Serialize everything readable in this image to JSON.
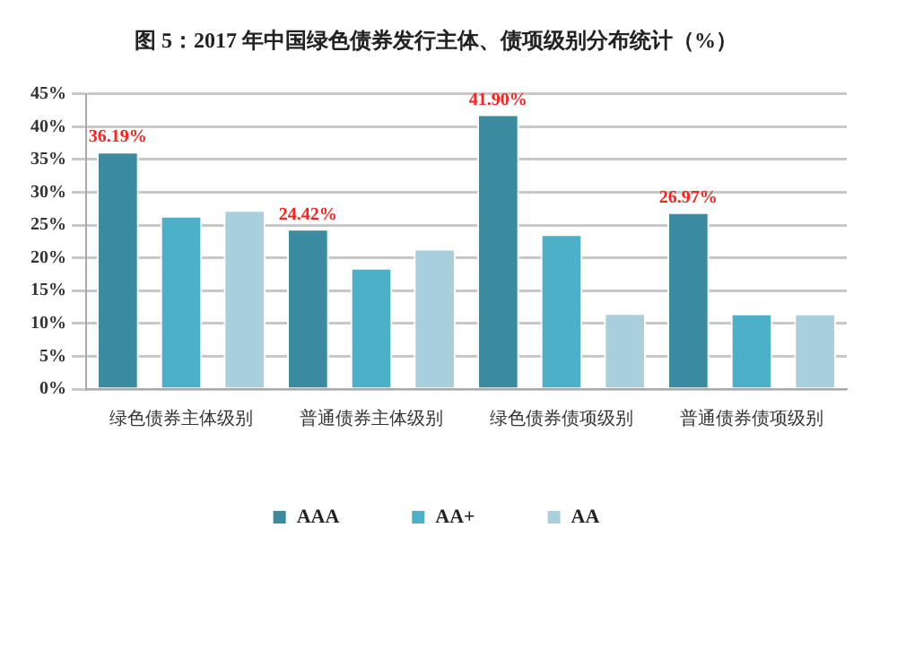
{
  "chart_data": {
    "type": "bar",
    "title": "图 5：2017 年中国绿色债券发行主体、债项级别分布统计（%）",
    "categories": [
      "绿色债券主体级别",
      "普通债券主体级别",
      "绿色债券债项级别",
      "普通债券债项级别"
    ],
    "series": [
      {
        "name": "AAA",
        "color": "#3a8aa0",
        "values": [
          36.19,
          24.42,
          41.9,
          26.97
        ],
        "value_labels": [
          "36.19%",
          "24.42%",
          "41.90%",
          "26.97%"
        ]
      },
      {
        "name": "AA+",
        "color": "#4bb0c8",
        "values": [
          26.4,
          18.5,
          23.6,
          11.5
        ]
      },
      {
        "name": "AA",
        "color": "#a8d0dc",
        "values": [
          27.3,
          21.4,
          11.6,
          11.5
        ]
      }
    ],
    "ylim": [
      0,
      45
    ],
    "yticks": [
      {
        "value": 0,
        "label": "0%"
      },
      {
        "value": 5,
        "label": "5%"
      },
      {
        "value": 10,
        "label": "10%"
      },
      {
        "value": 15,
        "label": "15%"
      },
      {
        "value": 20,
        "label": "20%"
      },
      {
        "value": 25,
        "label": "25%"
      },
      {
        "value": 30,
        "label": "30%"
      },
      {
        "value": 35,
        "label": "35%"
      },
      {
        "value": 40,
        "label": "40%"
      },
      {
        "value": 45,
        "label": "45%"
      }
    ],
    "grid": "y",
    "legend": "bottom"
  }
}
